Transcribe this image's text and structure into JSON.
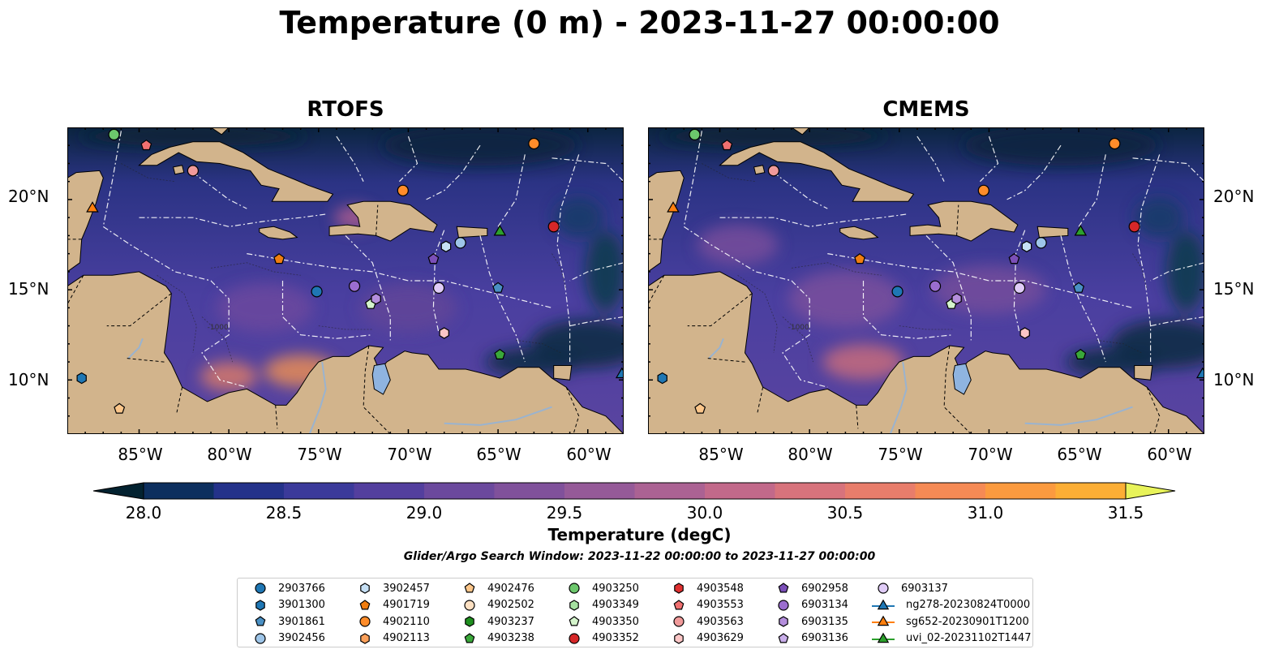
{
  "title": "Temperature (0 m) - 2023-11-27 00:00:00",
  "panels": [
    {
      "id": "rtofs",
      "title": "RTOFS"
    },
    {
      "id": "cmems",
      "title": "CMEMS"
    }
  ],
  "lat_ticks": [
    "20°N",
    "15°N",
    "10°N"
  ],
  "lon_ticks": [
    "85°W",
    "80°W",
    "75°W",
    "70°W",
    "65°W",
    "60°W"
  ],
  "contour_label": "-1000",
  "colorbar": {
    "label": "Temperature (degC)",
    "ticks": [
      "28.0",
      "28.5",
      "29.0",
      "29.5",
      "30.0",
      "30.5",
      "31.0",
      "31.5"
    ],
    "min": 28.0,
    "max": 31.5,
    "extend": "both",
    "colors": [
      "#03243a",
      "#0d2f5e",
      "#24328a",
      "#3b3a9a",
      "#533f9e",
      "#6b499d",
      "#80519b",
      "#955a98",
      "#ab6293",
      "#c2698a",
      "#d7737c",
      "#e87d6b",
      "#f58a55",
      "#fb9a3f",
      "#fcae35",
      "#f8c53a",
      "#f0e343"
    ],
    "under_color": "#032230",
    "over_color": "#e8f35a"
  },
  "search_window": "Glider/Argo Search Window: 2023-11-22 00:00:00 to 2023-11-27 00:00:00",
  "legend": [
    {
      "label": "2903766",
      "marker": "circle",
      "color": "#1f77b4"
    },
    {
      "label": "3901300",
      "marker": "hexagon",
      "color": "#1f77b4"
    },
    {
      "label": "3901861",
      "marker": "pentagon",
      "color": "#4a90c4"
    },
    {
      "label": "3902456",
      "marker": "circle",
      "color": "#9ec5e8"
    },
    {
      "label": "3902457",
      "marker": "hexagon",
      "color": "#c6e0f5"
    },
    {
      "label": "4901719",
      "marker": "pentagon",
      "color": "#f07d10"
    },
    {
      "label": "4902110",
      "marker": "circle",
      "color": "#ff8c2a"
    },
    {
      "label": "4902113",
      "marker": "hexagon",
      "color": "#fba05a"
    },
    {
      "label": "4902476",
      "marker": "pentagon",
      "color": "#fcc68a"
    },
    {
      "label": "4902502",
      "marker": "circle",
      "color": "#fde0c2"
    },
    {
      "label": "4903237",
      "marker": "hexagon",
      "color": "#1f8f1f"
    },
    {
      "label": "4903238",
      "marker": "pentagon",
      "color": "#3aa83a"
    },
    {
      "label": "4903250",
      "marker": "circle",
      "color": "#6cc76c"
    },
    {
      "label": "4903349",
      "marker": "hexagon",
      "color": "#a5e0a0"
    },
    {
      "label": "4903350",
      "marker": "pentagon",
      "color": "#d5f5cc"
    },
    {
      "label": "4903352",
      "marker": "circle",
      "color": "#d62728"
    },
    {
      "label": "4903548",
      "marker": "hexagon",
      "color": "#e03030"
    },
    {
      "label": "4903553",
      "marker": "pentagon",
      "color": "#f07070"
    },
    {
      "label": "4903563",
      "marker": "circle",
      "color": "#f09a9a"
    },
    {
      "label": "4903629",
      "marker": "hexagon",
      "color": "#fbc6c6"
    },
    {
      "label": "6902958",
      "marker": "pentagon",
      "color": "#7b4fb8"
    },
    {
      "label": "6903134",
      "marker": "circle",
      "color": "#9b6dcf"
    },
    {
      "label": "6903135",
      "marker": "hexagon",
      "color": "#b48edc"
    },
    {
      "label": "6903136",
      "marker": "pentagon",
      "color": "#c9aeea"
    },
    {
      "label": "6903137",
      "marker": "circle",
      "color": "#e0ccf7"
    },
    {
      "label": "ng278-20230824T0000",
      "marker": "triangle-line",
      "color": "#1f77b4"
    },
    {
      "label": "sg652-20230901T1200",
      "marker": "triangle-line",
      "color": "#ff7f0e"
    },
    {
      "label": "uvi_02-20231102T1447",
      "marker": "triangle-line",
      "color": "#2ca02c"
    }
  ],
  "map_extent": {
    "lon_min": -89,
    "lon_max": -58,
    "lat_min": 7,
    "lat_max": 24
  },
  "observations": [
    {
      "label": "2903766",
      "lon": -75.1,
      "lat": 14.9
    },
    {
      "label": "3901300",
      "lon": -88.2,
      "lat": 10.1
    },
    {
      "label": "3901861",
      "lon": -65.0,
      "lat": 15.1
    },
    {
      "label": "3902456",
      "lon": -67.1,
      "lat": 17.6
    },
    {
      "label": "3902457",
      "lon": -67.9,
      "lat": 17.4
    },
    {
      "label": "4901719",
      "lon": -77.2,
      "lat": 16.7
    },
    {
      "label": "4902110",
      "lon": -70.3,
      "lat": 20.5
    },
    {
      "label": "4902110",
      "lon": -63.0,
      "lat": 23.1
    },
    {
      "label": "4902476",
      "lon": -86.1,
      "lat": 8.4
    },
    {
      "label": "4903238",
      "lon": -64.9,
      "lat": 11.4
    },
    {
      "label": "4903250",
      "lon": -86.4,
      "lat": 23.6
    },
    {
      "label": "4903350",
      "lon": -72.1,
      "lat": 14.2
    },
    {
      "label": "4903352",
      "lon": -61.9,
      "lat": 18.5
    },
    {
      "label": "4903553",
      "lon": -84.6,
      "lat": 23.0
    },
    {
      "label": "4903563",
      "lon": -82.0,
      "lat": 21.6
    },
    {
      "label": "4903629",
      "lon": -68.0,
      "lat": 12.6
    },
    {
      "label": "6902958",
      "lon": -68.6,
      "lat": 16.7
    },
    {
      "label": "6903134",
      "lon": -73.0,
      "lat": 15.2
    },
    {
      "label": "6903135",
      "lon": -71.8,
      "lat": 14.5
    },
    {
      "label": "6903137",
      "lon": -68.3,
      "lat": 15.1
    },
    {
      "label": "ng278-20230824T0000",
      "lon": -58.1,
      "lat": 10.3
    },
    {
      "label": "sg652-20230901T1200",
      "lon": -87.6,
      "lat": 19.5
    },
    {
      "label": "uvi_02-20231102T1447",
      "lon": -64.9,
      "lat": 18.2
    }
  ]
}
